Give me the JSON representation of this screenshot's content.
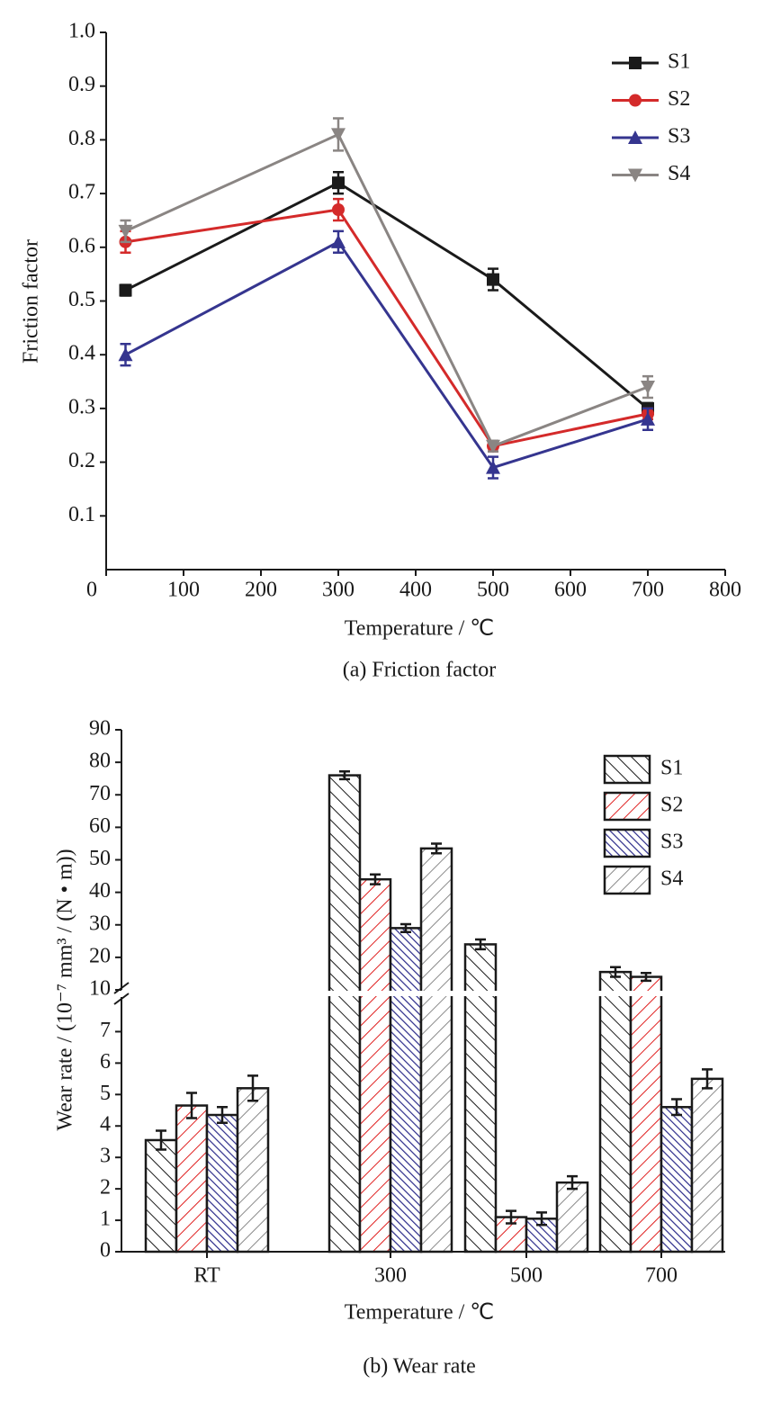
{
  "chart_data": [
    {
      "type": "line",
      "caption": "(a) Friction factor",
      "xlabel": "Temperature / ℃",
      "ylabel": "Friction factor",
      "x": [
        25,
        300,
        500,
        700
      ],
      "series": [
        {
          "name": "S1",
          "color": "#1a1a1a",
          "marker": "square",
          "values": [
            0.52,
            0.72,
            0.54,
            0.3
          ],
          "errors": [
            0.01,
            0.02,
            0.02,
            0.01
          ]
        },
        {
          "name": "S2",
          "color": "#d42a2a",
          "marker": "circle",
          "values": [
            0.61,
            0.67,
            0.23,
            0.29
          ],
          "errors": [
            0.02,
            0.02,
            0.01,
            0.01
          ]
        },
        {
          "name": "S3",
          "color": "#35358f",
          "marker": "triangle",
          "values": [
            0.4,
            0.61,
            0.19,
            0.28
          ],
          "errors": [
            0.02,
            0.02,
            0.02,
            0.02
          ]
        },
        {
          "name": "S4",
          "color": "#8a8583",
          "marker": "triangle-down",
          "values": [
            0.63,
            0.81,
            0.23,
            0.34
          ],
          "errors": [
            0.02,
            0.03,
            0.01,
            0.02
          ]
        }
      ],
      "xlim": [
        0,
        800
      ],
      "xticks": [
        0,
        100,
        200,
        300,
        400,
        500,
        600,
        700,
        800
      ],
      "ylim": [
        0,
        1
      ],
      "yticks": [
        0.1,
        0.2,
        0.3,
        0.4,
        0.5,
        0.6,
        0.7,
        0.8,
        0.9,
        {
          "value": 1,
          "label": "1.0"
        }
      ],
      "legend": "upper-right"
    },
    {
      "type": "bar",
      "caption": "(b) Wear rate",
      "xlabel": "Temperature / ℃",
      "ylabel": "Wear rate / (10⁻⁷ mm³ / (N • m))",
      "categories": [
        "RT",
        "300",
        "500",
        "700"
      ],
      "series": [
        {
          "name": "S1",
          "color": "#1a1a1a",
          "hatch": "back",
          "values": [
            3.55,
            76,
            24,
            15.5
          ],
          "errors": [
            0.3,
            1.2,
            1.5,
            1.5
          ]
        },
        {
          "name": "S2",
          "color": "#e02020",
          "hatch": "forward",
          "values": [
            4.65,
            44,
            1.1,
            14
          ],
          "errors": [
            0.4,
            1.5,
            0.2,
            1.2
          ]
        },
        {
          "name": "S3",
          "color": "#2b2b8a",
          "hatch": "back-dense",
          "values": [
            4.35,
            29,
            1.05,
            4.6
          ],
          "errors": [
            0.25,
            1.2,
            0.2,
            0.25
          ]
        },
        {
          "name": "S4",
          "color": "#8a8a8a",
          "hatch": "forward",
          "values": [
            5.2,
            53.5,
            2.2,
            5.5
          ],
          "errors": [
            0.4,
            1.5,
            0.2,
            0.3
          ]
        }
      ],
      "ylim": [
        0,
        90
      ],
      "y_break": [
        8.1,
        10
      ],
      "yticks": [
        0,
        1,
        2,
        3,
        4,
        5,
        6,
        7,
        10,
        20,
        30,
        40,
        50,
        60,
        70,
        80,
        90
      ],
      "legend": "upper-right"
    }
  ]
}
